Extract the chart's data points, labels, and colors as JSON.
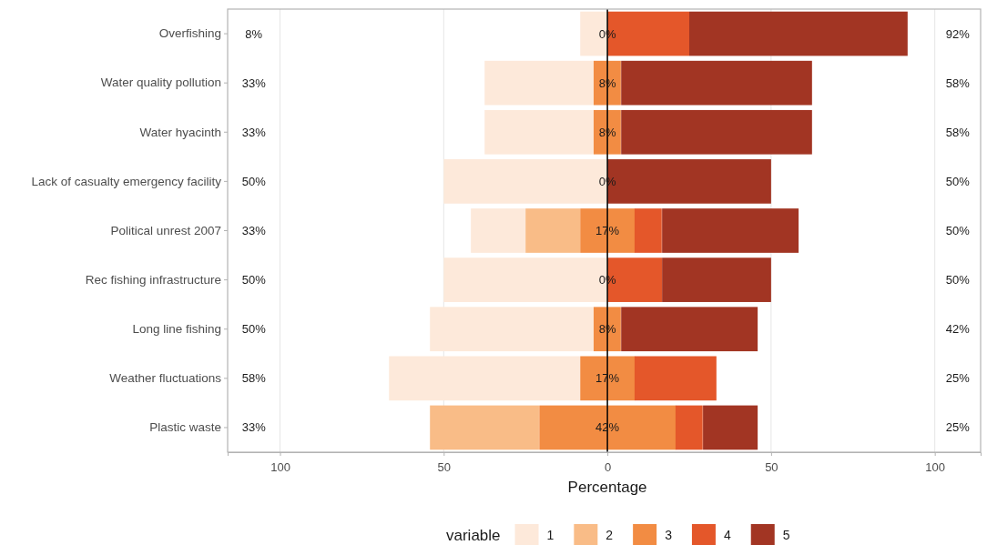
{
  "chart_data": {
    "type": "bar",
    "orientation": "horizontal",
    "xlabel": "Percentage",
    "legend_title": "variable",
    "legend": "bottom",
    "grid": "x",
    "categories": [
      "Overfishing",
      "Water quality pollution",
      "Water hyacinth",
      "Lack of casualty emergency facility",
      "Political unrest 2007",
      "Rec fishing infrastructure",
      "Long line fishing",
      "Weather fluctuations",
      "Plastic waste"
    ],
    "xlim": [
      -116,
      114
    ],
    "xticks": [
      {
        "value": -100,
        "label": "100"
      },
      {
        "value": -50,
        "label": "50"
      },
      0,
      50,
      100
    ],
    "series": [
      {
        "name": "1",
        "color": "#fde9da",
        "base": [
          -8.3,
          -37.5,
          -37.5,
          -50,
          -41.7,
          -50,
          -54.2,
          -66.7,
          null
        ],
        "values": [
          8.3,
          33.3,
          33.3,
          50,
          16.7,
          50,
          50,
          58.3,
          null
        ]
      },
      {
        "name": "2",
        "color": "#f9bc87",
        "base": [
          null,
          null,
          null,
          null,
          -25,
          null,
          null,
          null,
          -54.2
        ],
        "values": [
          null,
          null,
          null,
          null,
          16.7,
          null,
          null,
          null,
          33.3
        ]
      },
      {
        "name": "3",
        "color": "#f28c43",
        "base": [
          null,
          -4.2,
          -4.2,
          null,
          -8.3,
          null,
          -4.2,
          -8.3,
          -20.8
        ],
        "values": [
          null,
          8.3,
          8.3,
          null,
          16.7,
          null,
          8.3,
          16.7,
          41.7
        ]
      },
      {
        "name": "4",
        "color": "#e4572a",
        "base": [
          0,
          null,
          null,
          null,
          8.3,
          0,
          null,
          8.3,
          20.8
        ],
        "values": [
          25,
          null,
          null,
          null,
          8.3,
          16.7,
          null,
          25,
          8.3
        ]
      },
      {
        "name": "5",
        "color": "#a23523",
        "base": [
          25,
          4.2,
          4.2,
          0,
          16.7,
          16.7,
          4.2,
          null,
          29.2
        ],
        "values": [
          66.7,
          58.3,
          58.3,
          50,
          41.7,
          33.3,
          41.7,
          null,
          16.7
        ]
      }
    ],
    "ref_lines": [
      {
        "axis": "x",
        "value": 0,
        "color": "#000000"
      }
    ],
    "annotations": [
      "8%",
      "0%",
      "92%",
      "33%",
      "8%",
      "58%",
      "33%",
      "8%",
      "58%",
      "50%",
      "0%",
      "50%",
      "33%",
      "17%",
      "50%",
      "50%",
      "0%",
      "50%",
      "50%",
      "8%",
      "42%",
      "58%",
      "17%",
      "25%",
      "33%",
      "42%",
      "25%"
    ]
  }
}
